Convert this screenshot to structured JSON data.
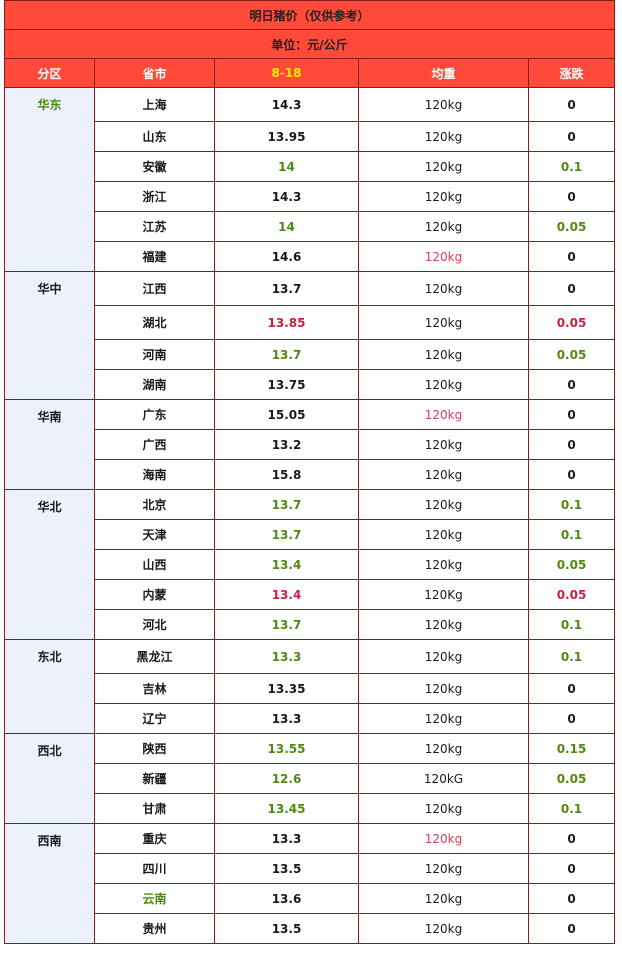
{
  "title": "明日猪价（仅供参考）",
  "unit": "单位：元/公斤",
  "headers": {
    "region": "分区",
    "province": "省市",
    "date": "8-18",
    "weight": "均重",
    "change": "涨跌"
  },
  "regions": [
    {
      "name": "华东",
      "color": "green",
      "rows": [
        {
          "province": "上海",
          "price": "14.3",
          "weight": "120kg",
          "change": "0"
        },
        {
          "province": "山东",
          "price": "13.95",
          "weight": "120kg",
          "change": "0"
        },
        {
          "province": "安徽",
          "price": "14",
          "price_color": "green",
          "weight": "120kg",
          "change": "0.1",
          "change_color": "green"
        },
        {
          "province": "浙江",
          "price": "14.3",
          "weight": "120kg",
          "change": "0"
        },
        {
          "province": "江苏",
          "price": "14",
          "price_color": "green",
          "weight": "120kg",
          "change": "0.05",
          "change_color": "green"
        },
        {
          "province": "福建",
          "price": "14.6",
          "weight": "120kg",
          "weight_color": "red",
          "change": "0"
        }
      ]
    },
    {
      "name": "华中",
      "rows": [
        {
          "province": "江西",
          "price": "13.7",
          "weight": "120kg",
          "change": "0"
        },
        {
          "province": "湖北",
          "price": "13.85",
          "price_color": "red",
          "weight": "120kg",
          "change": "0.05",
          "change_color": "red"
        },
        {
          "province": "河南",
          "price": "13.7",
          "price_color": "green",
          "weight": "120kg",
          "change": "0.05",
          "change_color": "green"
        },
        {
          "province": "湖南",
          "price": "13.75",
          "weight": "120kg",
          "change": "0"
        }
      ]
    },
    {
      "name": "华南",
      "rows": [
        {
          "province": "广东",
          "price": "15.05",
          "weight": "120kg",
          "weight_color": "red",
          "change": "0"
        },
        {
          "province": "广西",
          "price": "13.2",
          "weight": "120kg",
          "change": "0"
        },
        {
          "province": "海南",
          "price": "15.8",
          "weight": "120kg",
          "change": "0"
        }
      ]
    },
    {
      "name": "华北",
      "rows": [
        {
          "province": "北京",
          "price": "13.7",
          "price_color": "green",
          "weight": "120kg",
          "change": "0.1",
          "change_color": "green"
        },
        {
          "province": "天津",
          "price": "13.7",
          "price_color": "green",
          "weight": "120kg",
          "change": "0.1",
          "change_color": "green"
        },
        {
          "province": "山西",
          "price": "13.4",
          "price_color": "green",
          "weight": "120kg",
          "change": "0.05",
          "change_color": "green"
        },
        {
          "province": "内蒙",
          "price": "13.4",
          "price_color": "red",
          "weight": "120Kg",
          "change": "0.05",
          "change_color": "red"
        },
        {
          "province": "河北",
          "price": "13.7",
          "price_color": "green",
          "weight": "120kg",
          "change": "0.1",
          "change_color": "green"
        }
      ]
    },
    {
      "name": "东北",
      "rows": [
        {
          "province": "黑龙江",
          "price": "13.3",
          "price_color": "green",
          "weight": "120kg",
          "change": "0.1",
          "change_color": "green"
        },
        {
          "province": "吉林",
          "price": "13.35",
          "weight": "120kg",
          "change": "0"
        },
        {
          "province": "辽宁",
          "price": "13.3",
          "weight": "120kg",
          "change": "0"
        }
      ]
    },
    {
      "name": "西北",
      "rows": [
        {
          "province": "陕西",
          "price": "13.55",
          "price_color": "green",
          "weight": "120kg",
          "change": "0.15",
          "change_color": "green"
        },
        {
          "province": "新疆",
          "price": "12.6",
          "price_color": "green",
          "weight": "120kG",
          "change": "0.05",
          "change_color": "green"
        },
        {
          "province": "甘肃",
          "price": "13.45",
          "price_color": "green",
          "weight": "120kg",
          "change": "0.1",
          "change_color": "green"
        }
      ]
    },
    {
      "name": "西南",
      "rows": [
        {
          "province": "重庆",
          "price": "13.3",
          "weight": "120kg",
          "weight_color": "red",
          "change": "0"
        },
        {
          "province": "四川",
          "price": "13.5",
          "weight": "120kg",
          "change": "0"
        },
        {
          "province": "云南",
          "province_color": "green",
          "price": "13.6",
          "weight": "120kg",
          "change": "0"
        },
        {
          "province": "贵州",
          "price": "13.5",
          "weight": "120kg",
          "change": "0"
        }
      ]
    }
  ]
}
